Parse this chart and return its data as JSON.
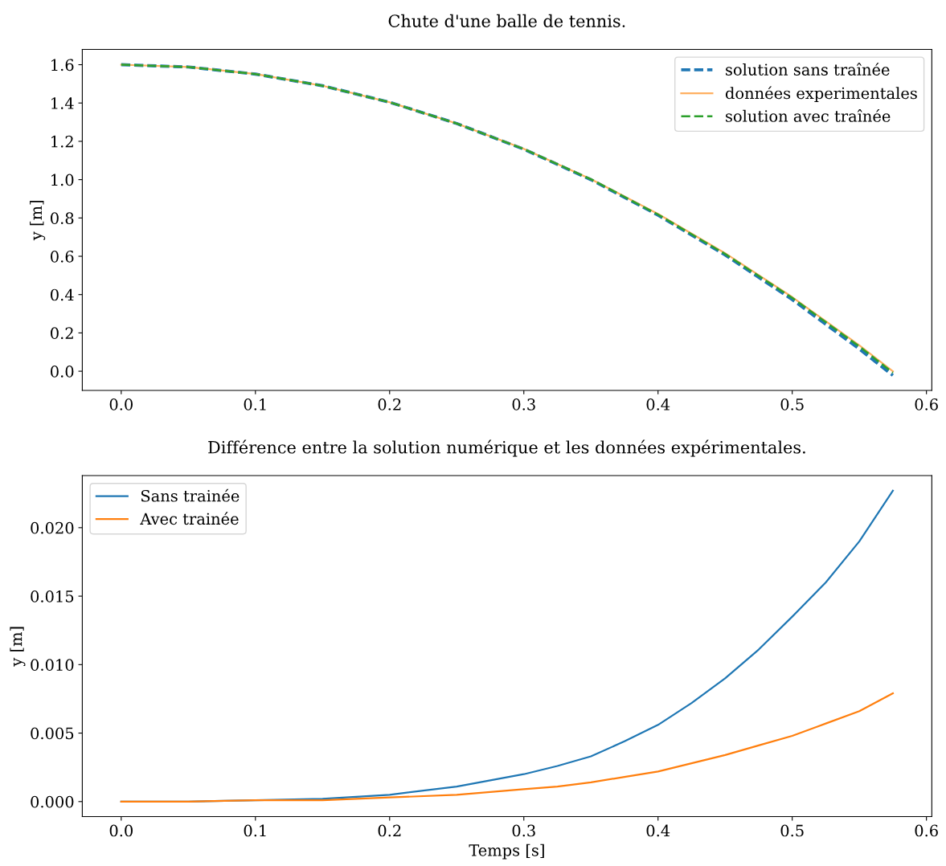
{
  "chart_data": [
    {
      "type": "line",
      "title": "Chute d'une balle de tennis.",
      "ylabel": "y [m]",
      "x": [
        0,
        0.05,
        0.1,
        0.15,
        0.2,
        0.25,
        0.3,
        0.35,
        0.4,
        0.45,
        0.5,
        0.55,
        0.575
      ],
      "series": [
        {
          "name": "solution sans traînée",
          "color": "#1f77b4",
          "line_style": "dashed",
          "values": [
            1.6,
            1.588,
            1.551,
            1.49,
            1.404,
            1.293,
            1.159,
            1.0,
            0.815,
            0.607,
            0.374,
            0.116,
            -0.022
          ]
        },
        {
          "name": "données experimentales",
          "color": "#ffb062",
          "line_style": "solid",
          "values": [
            1.6,
            1.588,
            1.551,
            1.49,
            1.404,
            1.293,
            1.161,
            1.003,
            0.821,
            0.616,
            0.387,
            0.135,
            0.0
          ]
        },
        {
          "name": "solution avec traînée",
          "color": "#2ca02c",
          "line_style": "dashed",
          "values": [
            1.6,
            1.588,
            1.551,
            1.49,
            1.404,
            1.293,
            1.16,
            1.002,
            0.818,
            0.612,
            0.383,
            0.129,
            -0.008
          ]
        }
      ],
      "xlim": [
        -0.029,
        0.604
      ],
      "ylim": [
        -0.1,
        1.68
      ],
      "xticks": [
        {
          "value": 0,
          "label": "0.0"
        },
        0.1,
        0.2,
        0.3,
        0.4,
        0.5,
        0.6
      ],
      "yticks": [
        {
          "value": 0,
          "label": "0.0"
        },
        0.2,
        0.4,
        0.6,
        0.8,
        {
          "value": 1,
          "label": "1.0"
        },
        1.2,
        1.4,
        1.6
      ],
      "legend": "top right",
      "grid": false,
      "marker": "none"
    },
    {
      "type": "line",
      "title": "Différence entre la solution numérique et les données expérimentales.",
      "xlabel": "Temps [s]",
      "ylabel": "y [m]",
      "x": [
        0,
        0.05,
        0.1,
        0.15,
        0.2,
        0.25,
        0.3,
        0.325,
        0.35,
        0.375,
        0.4,
        0.425,
        0.45,
        0.475,
        0.5,
        0.525,
        0.55,
        0.575
      ],
      "series": [
        {
          "name": "Sans trainée",
          "color": "#1f77b4",
          "line_style": "solid",
          "values": [
            0,
            0,
            0.0001,
            0.0002,
            0.0005,
            0.0011,
            0.002,
            0.0026,
            0.0033,
            0.0044,
            0.0056,
            0.0072,
            0.009,
            0.0111,
            0.0135,
            0.016,
            0.019,
            0.0227
          ]
        },
        {
          "name": "Avec trainée",
          "color": "#ff7f0e",
          "line_style": "solid",
          "values": [
            0,
            0,
            0.0001,
            0.0001,
            0.0003,
            0.0005,
            0.0009,
            0.0011,
            0.0014,
            0.0018,
            0.0022,
            0.0028,
            0.0034,
            0.0041,
            0.0048,
            0.0057,
            0.0066,
            0.0079
          ]
        }
      ],
      "xlim": [
        -0.029,
        0.604
      ],
      "ylim": [
        -0.0011,
        0.0238
      ],
      "xticks": [
        {
          "value": 0,
          "label": "0.0"
        },
        0.1,
        0.2,
        0.3,
        0.4,
        0.5,
        0.6
      ],
      "yticks": [
        {
          "value": 0,
          "label": "0.000"
        },
        {
          "value": 0.005,
          "label": "0.005"
        },
        {
          "value": 0.01,
          "label": "0.010"
        },
        {
          "value": 0.015,
          "label": "0.015"
        },
        {
          "value": 0.02,
          "label": "0.020"
        }
      ],
      "legend": "top left",
      "grid": false,
      "marker": "none"
    }
  ]
}
